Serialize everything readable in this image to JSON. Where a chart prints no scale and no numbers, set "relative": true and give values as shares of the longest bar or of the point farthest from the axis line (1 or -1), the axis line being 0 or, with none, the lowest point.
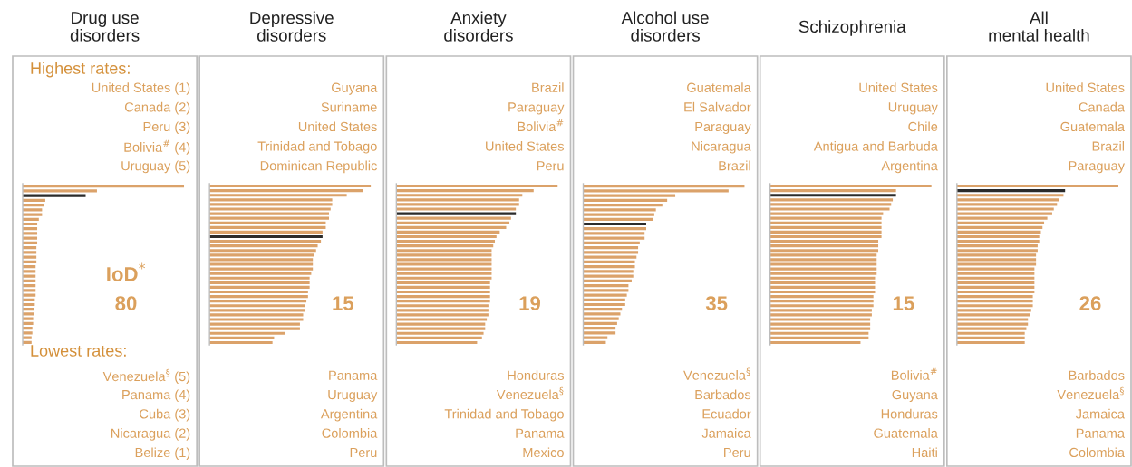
{
  "chart_data": [
    {
      "type": "bar",
      "orientation": "horizontal",
      "relative": true,
      "title": "Drug use\ndisorders",
      "categories": [
        null,
        null,
        null,
        null,
        null,
        null,
        null,
        null,
        null,
        null,
        null,
        null,
        null,
        null,
        null,
        null,
        null,
        null,
        null,
        null,
        null,
        null,
        null,
        null,
        null,
        null,
        null,
        null,
        null,
        null,
        null,
        null,
        null,
        null
      ],
      "values": [
        1.0,
        0.46,
        0.39,
        0.14,
        0.13,
        0.12,
        0.12,
        0.1,
        0.09,
        0.09,
        0.09,
        0.09,
        0.09,
        0.085,
        0.085,
        0.085,
        0.085,
        0.08,
        0.08,
        0.08,
        0.08,
        0.08,
        0.08,
        0.08,
        0.075,
        0.075,
        0.07,
        0.07,
        0.065,
        0.065,
        0.06,
        0.06,
        0.055,
        0.055
      ],
      "colors": [
        "#dba26a",
        "#dba26a",
        "#2b2b2b",
        "#dba26a",
        "#dba26a",
        "#dba26a",
        "#dba26a",
        "#dba26a",
        "#dba26a",
        "#dba26a",
        "#dba26a",
        "#dba26a",
        "#dba26a",
        "#dba26a",
        "#dba26a",
        "#dba26a",
        "#dba26a",
        "#dba26a",
        "#dba26a",
        "#dba26a",
        "#dba26a",
        "#dba26a",
        "#dba26a",
        "#dba26a",
        "#dba26a",
        "#dba26a",
        "#dba26a",
        "#dba26a",
        "#dba26a",
        "#dba26a",
        "#dba26a",
        "#dba26a",
        "#dba26a",
        "#dba26a"
      ],
      "annotations": [
        "United States (1)",
        "Canada (2)",
        "Peru (3)",
        "Bolivia$^{#}$ (4)",
        "Uruguay (5)",
        "Venezuela$^{§}$ (5)",
        "Panama (4)",
        "Cuba (3)",
        "Nicaragua (2)",
        "Belize (1)",
        "80",
        "Highest rates:",
        "Lowest rates:",
        "IoD$^{*}$"
      ]
    },
    {
      "type": "bar",
      "orientation": "horizontal",
      "relative": true,
      "title": "Depressive\ndisorders",
      "categories": [
        null,
        null,
        null,
        null,
        null,
        null,
        null,
        null,
        null,
        null,
        null,
        null,
        null,
        null,
        null,
        null,
        null,
        null,
        null,
        null,
        null,
        null,
        null,
        null,
        null,
        null,
        null,
        null,
        null,
        null,
        null,
        null,
        null,
        null,
        null
      ],
      "values": [
        1.0,
        0.95,
        0.85,
        0.76,
        0.76,
        0.75,
        0.74,
        0.74,
        0.72,
        0.72,
        0.7,
        0.7,
        0.69,
        0.67,
        0.66,
        0.65,
        0.64,
        0.64,
        0.64,
        0.63,
        0.62,
        0.62,
        0.62,
        0.61,
        0.61,
        0.6,
        0.59,
        0.59,
        0.58,
        0.58,
        0.56,
        0.56,
        0.47,
        0.4,
        0.39
      ],
      "colors": [
        "#dba26a",
        "#dba26a",
        "#dba26a",
        "#dba26a",
        "#dba26a",
        "#dba26a",
        "#dba26a",
        "#dba26a",
        "#dba26a",
        "#dba26a",
        "#dba26a",
        "#2b2b2b",
        "#dba26a",
        "#dba26a",
        "#dba26a",
        "#dba26a",
        "#dba26a",
        "#dba26a",
        "#dba26a",
        "#dba26a",
        "#dba26a",
        "#dba26a",
        "#dba26a",
        "#dba26a",
        "#dba26a",
        "#dba26a",
        "#dba26a",
        "#dba26a",
        "#dba26a",
        "#dba26a",
        "#dba26a",
        "#dba26a",
        "#dba26a",
        "#dba26a",
        "#dba26a"
      ],
      "annotations": [
        "Guyana",
        "Suriname",
        "United States",
        "Trinidad and Tobago",
        "Dominican Republic",
        "Panama",
        "Uruguay",
        "Argentina",
        "Colombia",
        "Peru",
        "15"
      ]
    },
    {
      "type": "bar",
      "orientation": "horizontal",
      "relative": true,
      "title": "Anxiety\ndisorders",
      "categories": [
        null,
        null,
        null,
        null,
        null,
        null,
        null,
        null,
        null,
        null,
        null,
        null,
        null,
        null,
        null,
        null,
        null,
        null,
        null,
        null,
        null,
        null,
        null,
        null,
        null,
        null,
        null,
        null,
        null,
        null,
        null,
        null,
        null,
        null,
        null
      ],
      "values": [
        1.0,
        0.85,
        0.78,
        0.76,
        0.76,
        0.74,
        0.74,
        0.71,
        0.7,
        0.68,
        0.64,
        0.62,
        0.61,
        0.6,
        0.59,
        0.59,
        0.59,
        0.59,
        0.59,
        0.59,
        0.59,
        0.58,
        0.58,
        0.58,
        0.58,
        0.58,
        0.57,
        0.57,
        0.57,
        0.56,
        0.55,
        0.55,
        0.54,
        0.53,
        0.5
      ],
      "colors": [
        "#dba26a",
        "#dba26a",
        "#dba26a",
        "#dba26a",
        "#dba26a",
        "#dba26a",
        "#2b2b2b",
        "#dba26a",
        "#dba26a",
        "#dba26a",
        "#dba26a",
        "#dba26a",
        "#dba26a",
        "#dba26a",
        "#dba26a",
        "#dba26a",
        "#dba26a",
        "#dba26a",
        "#dba26a",
        "#dba26a",
        "#dba26a",
        "#dba26a",
        "#dba26a",
        "#dba26a",
        "#dba26a",
        "#dba26a",
        "#dba26a",
        "#dba26a",
        "#dba26a",
        "#dba26a",
        "#dba26a",
        "#dba26a",
        "#dba26a",
        "#dba26a",
        "#dba26a"
      ],
      "annotations": [
        "Brazil",
        "Paraguay",
        "Bolivia$^{#}$",
        "United States",
        "Peru",
        "Honduras",
        "Venezuela$^{§}$",
        "Trinidad and Tobago",
        "Panama",
        "Mexico",
        "19"
      ]
    },
    {
      "type": "bar",
      "orientation": "horizontal",
      "relative": true,
      "title": "Alcohol use\ndisorders",
      "categories": [
        null,
        null,
        null,
        null,
        null,
        null,
        null,
        null,
        null,
        null,
        null,
        null,
        null,
        null,
        null,
        null,
        null,
        null,
        null,
        null,
        null,
        null,
        null,
        null,
        null,
        null,
        null,
        null,
        null,
        null,
        null,
        null,
        null,
        null
      ],
      "values": [
        1.0,
        0.9,
        0.57,
        0.52,
        0.49,
        0.45,
        0.44,
        0.43,
        0.39,
        0.39,
        0.38,
        0.38,
        0.35,
        0.34,
        0.34,
        0.33,
        0.32,
        0.32,
        0.31,
        0.31,
        0.3,
        0.28,
        0.28,
        0.27,
        0.26,
        0.26,
        0.24,
        0.23,
        0.22,
        0.21,
        0.2,
        0.2,
        0.15,
        0.14
      ],
      "colors": [
        "#dba26a",
        "#dba26a",
        "#dba26a",
        "#dba26a",
        "#dba26a",
        "#dba26a",
        "#dba26a",
        "#dba26a",
        "#2b2b2b",
        "#dba26a",
        "#dba26a",
        "#dba26a",
        "#dba26a",
        "#dba26a",
        "#dba26a",
        "#dba26a",
        "#dba26a",
        "#dba26a",
        "#dba26a",
        "#dba26a",
        "#dba26a",
        "#dba26a",
        "#dba26a",
        "#dba26a",
        "#dba26a",
        "#dba26a",
        "#dba26a",
        "#dba26a",
        "#dba26a",
        "#dba26a",
        "#dba26a",
        "#dba26a",
        "#dba26a",
        "#dba26a"
      ],
      "annotations": [
        "Guatemala",
        "El Salvador",
        "Paraguay",
        "Nicaragua",
        "Brazil",
        "Venezuela$^{§}$",
        "Barbados",
        "Ecuador",
        "Jamaica",
        "Peru",
        "35"
      ]
    },
    {
      "type": "bar",
      "orientation": "horizontal",
      "relative": true,
      "title": "Schizophrenia",
      "categories": [
        null,
        null,
        null,
        null,
        null,
        null,
        null,
        null,
        null,
        null,
        null,
        null,
        null,
        null,
        null,
        null,
        null,
        null,
        null,
        null,
        null,
        null,
        null,
        null,
        null,
        null,
        null,
        null,
        null,
        null,
        null,
        null,
        null,
        null,
        null
      ],
      "values": [
        1.0,
        0.78,
        0.78,
        0.76,
        0.75,
        0.74,
        0.7,
        0.69,
        0.69,
        0.69,
        0.69,
        0.69,
        0.67,
        0.67,
        0.67,
        0.66,
        0.66,
        0.66,
        0.66,
        0.66,
        0.65,
        0.65,
        0.65,
        0.65,
        0.64,
        0.64,
        0.64,
        0.63,
        0.63,
        0.62,
        0.62,
        0.62,
        0.61,
        0.61,
        0.56
      ],
      "colors": [
        "#dba26a",
        "#dba26a",
        "#2b2b2b",
        "#dba26a",
        "#dba26a",
        "#dba26a",
        "#dba26a",
        "#dba26a",
        "#dba26a",
        "#dba26a",
        "#dba26a",
        "#dba26a",
        "#dba26a",
        "#dba26a",
        "#dba26a",
        "#dba26a",
        "#dba26a",
        "#dba26a",
        "#dba26a",
        "#dba26a",
        "#dba26a",
        "#dba26a",
        "#dba26a",
        "#dba26a",
        "#dba26a",
        "#dba26a",
        "#dba26a",
        "#dba26a",
        "#dba26a",
        "#dba26a",
        "#dba26a",
        "#dba26a",
        "#dba26a",
        "#dba26a",
        "#dba26a"
      ],
      "annotations": [
        "United States",
        "Uruguay",
        "Chile",
        "Antigua and Barbuda",
        "Argentina",
        "Bolivia$^{#}$",
        "Guyana",
        "Honduras",
        "Guatemala",
        "Haiti",
        "15"
      ]
    },
    {
      "type": "bar",
      "orientation": "horizontal",
      "relative": true,
      "title": "All\nmental health",
      "categories": [
        null,
        null,
        null,
        null,
        null,
        null,
        null,
        null,
        null,
        null,
        null,
        null,
        null,
        null,
        null,
        null,
        null,
        null,
        null,
        null,
        null,
        null,
        null,
        null,
        null,
        null,
        null,
        null,
        null,
        null,
        null,
        null,
        null,
        null,
        null
      ],
      "values": [
        1.0,
        0.67,
        0.66,
        0.63,
        0.62,
        0.6,
        0.59,
        0.56,
        0.54,
        0.53,
        0.52,
        0.51,
        0.51,
        0.5,
        0.5,
        0.49,
        0.49,
        0.49,
        0.48,
        0.48,
        0.48,
        0.48,
        0.48,
        0.48,
        0.47,
        0.47,
        0.47,
        0.46,
        0.45,
        0.44,
        0.44,
        0.43,
        0.42,
        0.42,
        0.42
      ],
      "colors": [
        "#dba26a",
        "#2b2b2b",
        "#dba26a",
        "#dba26a",
        "#dba26a",
        "#dba26a",
        "#dba26a",
        "#dba26a",
        "#dba26a",
        "#dba26a",
        "#dba26a",
        "#dba26a",
        "#dba26a",
        "#dba26a",
        "#dba26a",
        "#dba26a",
        "#dba26a",
        "#dba26a",
        "#dba26a",
        "#dba26a",
        "#dba26a",
        "#dba26a",
        "#dba26a",
        "#dba26a",
        "#dba26a",
        "#dba26a",
        "#dba26a",
        "#dba26a",
        "#dba26a",
        "#dba26a",
        "#dba26a",
        "#dba26a",
        "#dba26a",
        "#dba26a",
        "#dba26a"
      ],
      "annotations": [
        "United States",
        "Canada",
        "Guatemala",
        "Brazil",
        "Paraguay",
        "Barbados",
        "Venezuela$^{§}$",
        "Jamaica",
        "Panama",
        "Colombia",
        "26"
      ]
    }
  ]
}
